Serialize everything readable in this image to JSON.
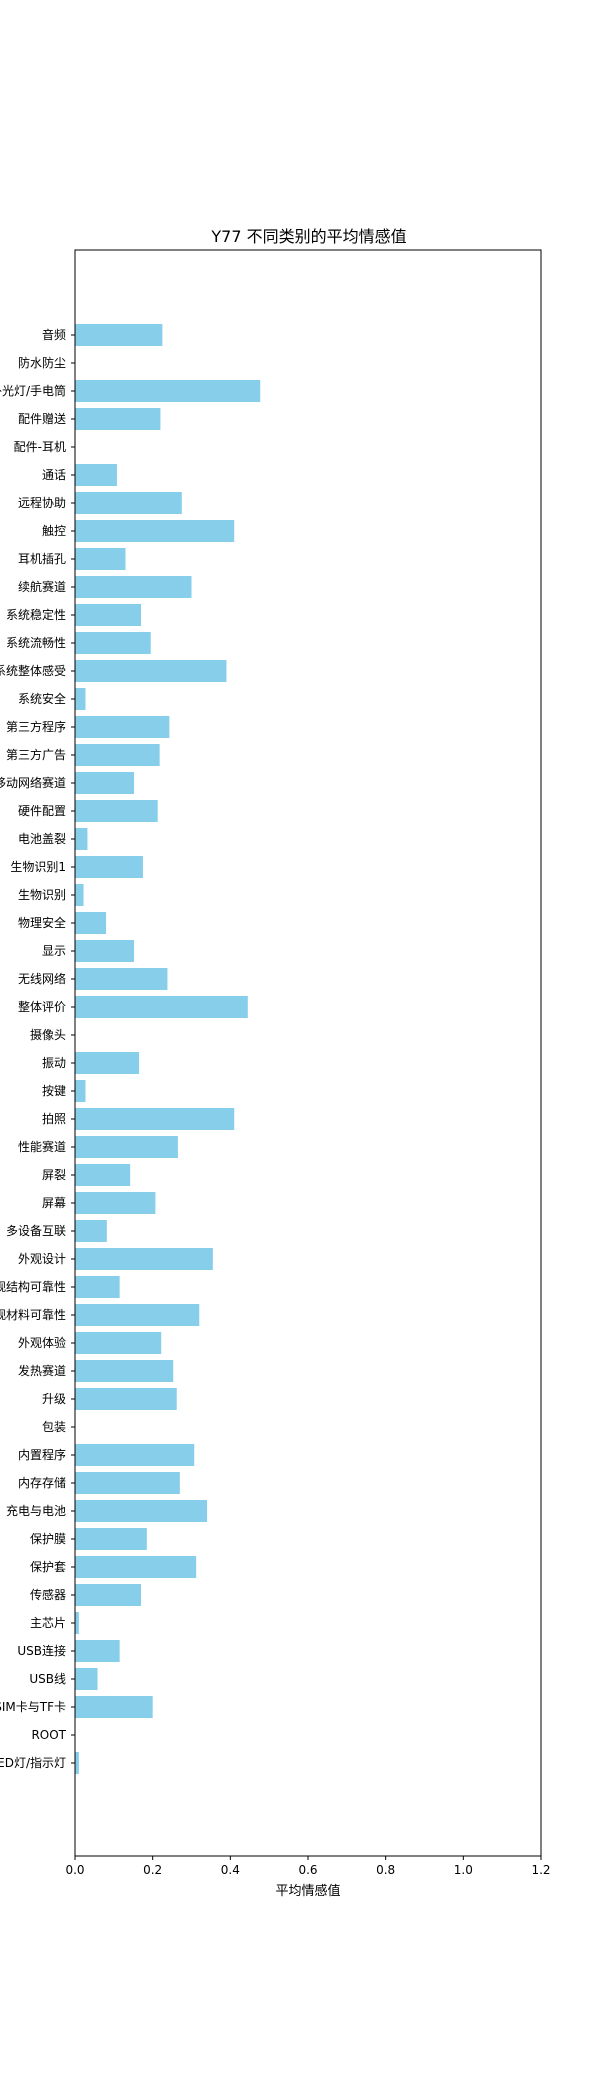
{
  "chart_data": {
    "type": "bar",
    "orientation": "horizontal",
    "title": "Y77 不同类别的平均情感值",
    "xlabel": "平均情感值",
    "ylabel": "",
    "xlim": [
      0,
      1.2
    ],
    "xticks": [
      "0.0",
      "0.2",
      "0.4",
      "0.6",
      "0.8",
      "1.0",
      "1.2"
    ],
    "grid": false,
    "bar_color": "#87CEEB",
    "categories": [
      "音频",
      "防水防尘",
      "补光灯/手电筒",
      "配件赠送",
      "配件-耳机",
      "通话",
      "远程协助",
      "触控",
      "耳机插孔",
      "续航赛道",
      "系统稳定性",
      "系统流畅性",
      "系统整体感受",
      "系统安全",
      "第三方程序",
      "第三方广告",
      "移动网络赛道",
      "硬件配置",
      "电池盖裂",
      "生物识别1",
      "生物识别",
      "物理安全",
      "显示",
      "无线网络",
      "整体评价",
      "摄像头",
      "振动",
      "按键",
      "拍照",
      "性能赛道",
      "屏裂",
      "屏幕",
      "多设备互联",
      "外观设计",
      "外观结构可靠性",
      "外观材料可靠性",
      "外观体验",
      "发热赛道",
      "升级",
      "包装",
      "内置程序",
      "内存存储",
      "充电与电池",
      "保护膜",
      "保护套",
      "传感器",
      "主芯片",
      "USB连接",
      "USB线",
      "SIM卡与TF卡",
      "ROOT",
      "LED灯/指示灯"
    ],
    "values": [
      0.225,
      0.0,
      0.477,
      0.22,
      0.0,
      0.108,
      0.275,
      0.41,
      0.13,
      0.3,
      0.17,
      0.195,
      0.39,
      0.027,
      0.243,
      0.218,
      0.152,
      0.213,
      0.032,
      0.175,
      0.022,
      0.08,
      0.152,
      0.238,
      0.445,
      0.0,
      0.165,
      0.027,
      0.41,
      0.265,
      0.142,
      0.207,
      0.082,
      0.355,
      0.115,
      0.32,
      0.222,
      0.253,
      0.262,
      0.0,
      0.307,
      0.27,
      0.34,
      0.185,
      0.312,
      0.17,
      0.01,
      0.115,
      0.058,
      0.2,
      0.0,
      0.01
    ]
  }
}
